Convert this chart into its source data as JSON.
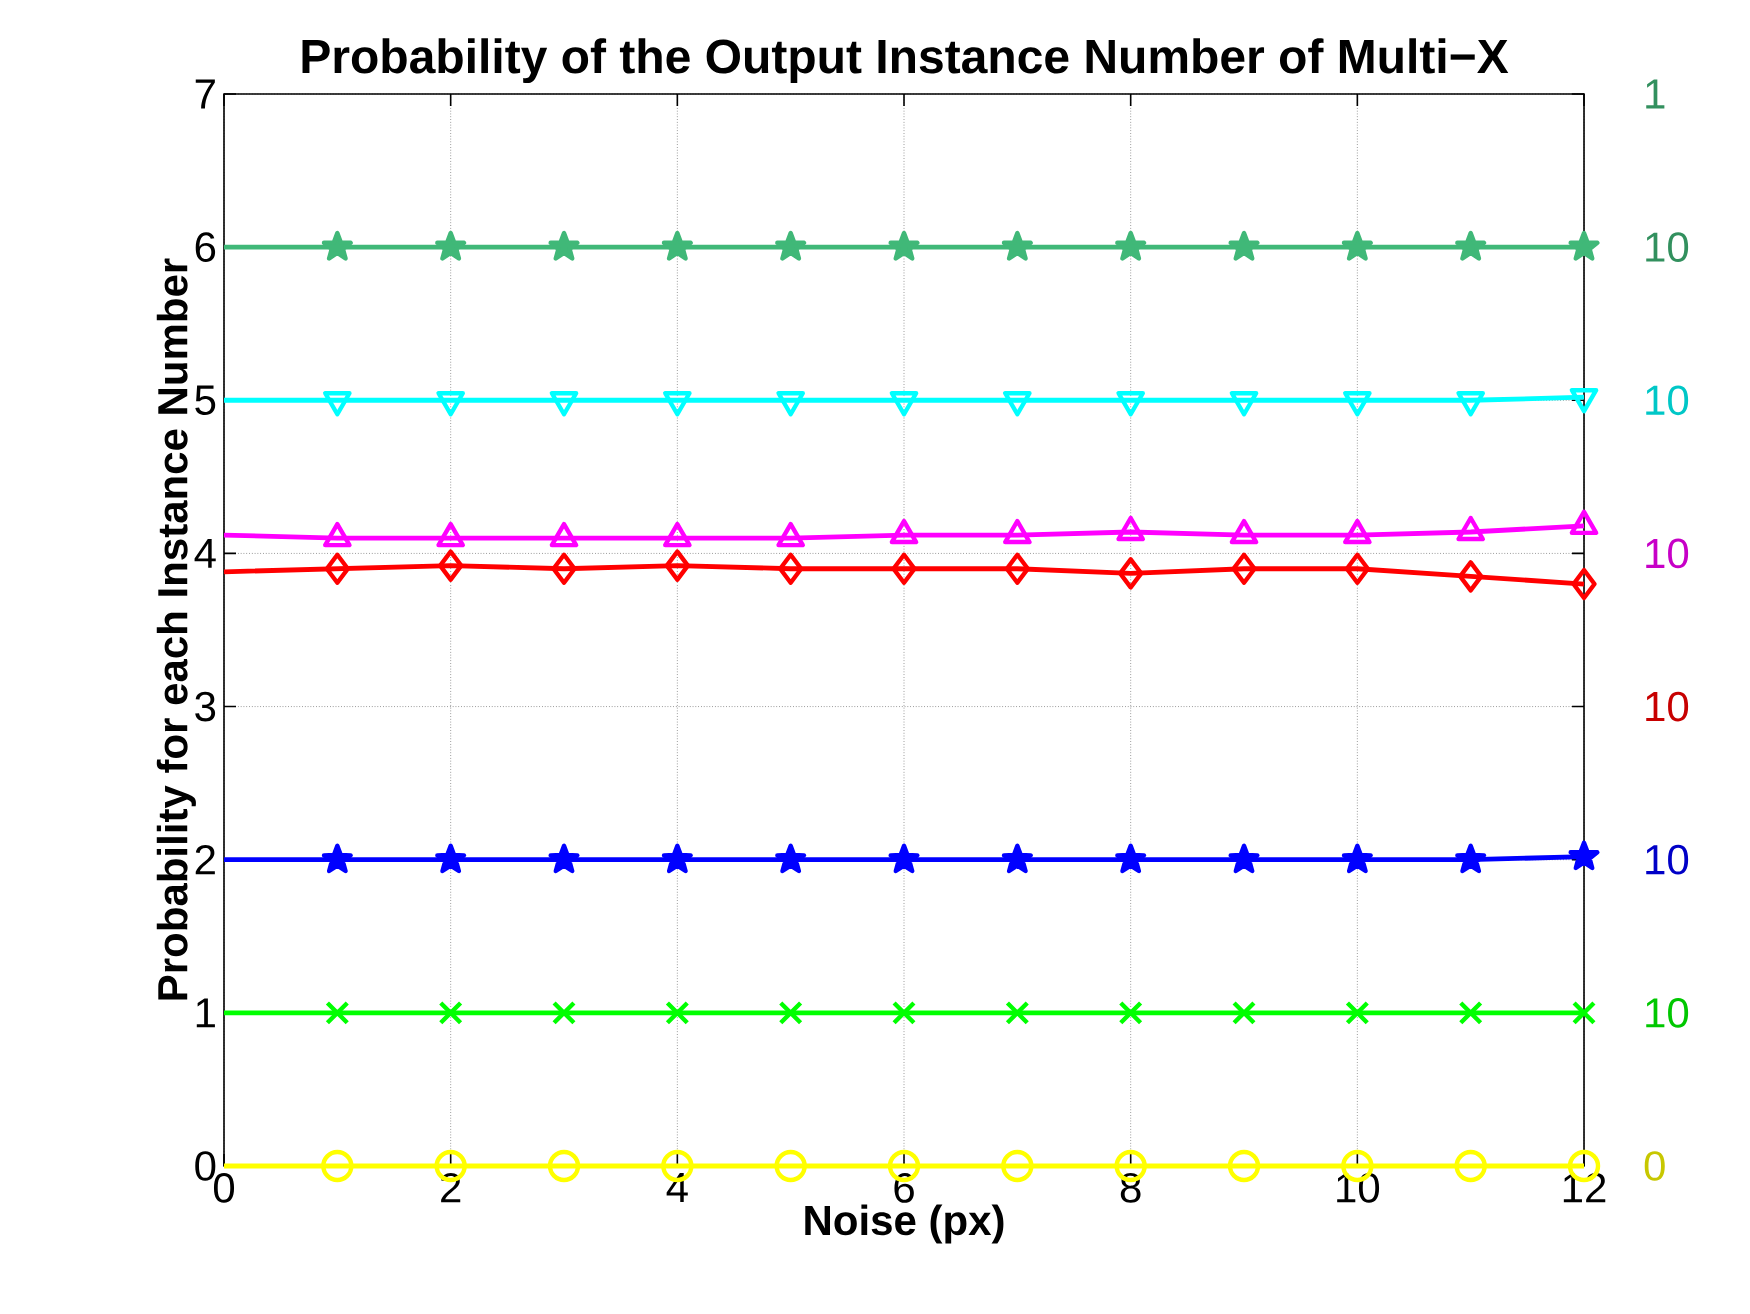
{
  "chart_data": {
    "type": "line",
    "title": "Probability of the Output Instance Number of Multi−X",
    "xlabel": "Noise (px)",
    "ylabel": "Probability for each Instance Number",
    "x": [
      0,
      1,
      2,
      3,
      4,
      5,
      6,
      7,
      8,
      9,
      10,
      11,
      12
    ],
    "series": [
      {
        "color": "#ffff00",
        "marker": "circle",
        "values": [
          0,
          0,
          0,
          0,
          0,
          0,
          0,
          0,
          0,
          0,
          0,
          0,
          0
        ]
      },
      {
        "color": "#00ff00",
        "marker": "cross",
        "values": [
          1,
          1,
          1,
          1,
          1,
          1,
          1,
          1,
          1,
          1,
          1,
          1,
          1
        ]
      },
      {
        "color": "#0000ff",
        "marker": "star",
        "values": [
          2,
          2,
          2,
          2,
          2,
          2,
          2,
          2,
          2,
          2,
          2,
          2,
          2.02
        ]
      },
      {
        "color": "#ff0000",
        "marker": "diamond",
        "values": [
          3.88,
          3.9,
          3.92,
          3.9,
          3.92,
          3.9,
          3.9,
          3.9,
          3.87,
          3.9,
          3.9,
          3.85,
          3.8
        ]
      },
      {
        "color": "#ff00ff",
        "marker": "triangle",
        "values": [
          4.12,
          4.1,
          4.1,
          4.1,
          4.1,
          4.1,
          4.12,
          4.12,
          4.14,
          4.12,
          4.12,
          4.14,
          4.18
        ]
      },
      {
        "color": "#00ffff",
        "marker": "triangle-down",
        "values": [
          5,
          5,
          5,
          5,
          5,
          5,
          5,
          5,
          5,
          5,
          5,
          5,
          5.02
        ]
      },
      {
        "color": "#40b878",
        "marker": "star",
        "values": [
          6,
          6,
          6,
          6,
          6,
          6,
          6,
          6,
          6,
          6,
          6,
          6,
          6
        ]
      }
    ],
    "xlim": [
      0,
      12
    ],
    "ylim": [
      0,
      7
    ],
    "xticks": [
      0,
      2,
      4,
      6,
      8,
      10,
      12
    ],
    "yticks": [
      0,
      1,
      2,
      3,
      4,
      5,
      6,
      7
    ],
    "annotations": [
      "0",
      "10",
      "10",
      "10",
      "10",
      "10",
      "10",
      "1"
    ],
    "grid": true,
    "line_style": "solid"
  }
}
